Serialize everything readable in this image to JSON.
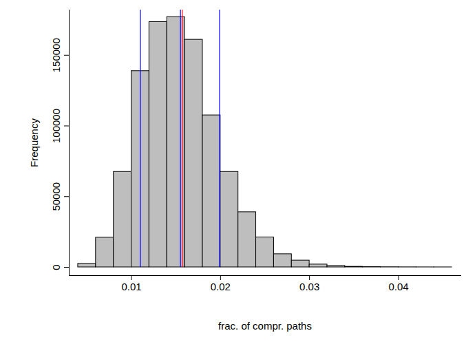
{
  "chart_data": {
    "type": "histogram",
    "xlabel": "frac. of compr. paths",
    "ylabel": "Frequency",
    "bins": [
      0.004,
      0.006,
      0.008,
      0.01,
      0.012,
      0.014,
      0.016,
      0.018,
      0.02,
      0.022,
      0.024,
      0.026,
      0.028,
      0.03,
      0.032,
      0.034,
      0.036,
      0.038,
      0.04,
      0.042,
      0.044,
      0.046
    ],
    "values": [
      2500,
      21000,
      67500,
      138800,
      173500,
      177000,
      161000,
      107500,
      67500,
      39000,
      21200,
      9300,
      4800,
      2000,
      1000,
      400,
      200,
      100,
      50,
      20,
      10
    ],
    "color": "#bebebe",
    "vertical_lines": [
      {
        "value": 0.011,
        "color": "blue"
      },
      {
        "value": 0.0155,
        "color": "blue"
      },
      {
        "value": 0.0157,
        "color": "red"
      },
      {
        "value": 0.0199,
        "color": "blue"
      }
    ],
    "xlim": [
      0.003,
      0.047
    ],
    "ylim": [
      0,
      182000
    ],
    "xticks": [
      0.01,
      0.02,
      0.03,
      0.04
    ],
    "yticks": [
      0,
      50000,
      100000,
      150000
    ],
    "grid": false
  }
}
